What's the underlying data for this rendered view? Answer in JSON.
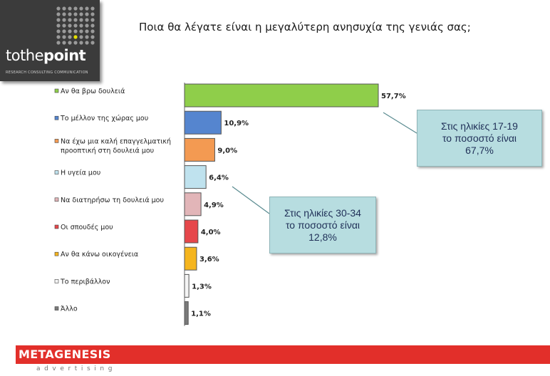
{
  "logo": {
    "word_part1": "tothe",
    "word_part2": "point",
    "tagline": "RESEARCH  CONSULTING  COMMUNICATION",
    "dot_color": "#9a9a9a",
    "accent_dot_color": "#e5e000"
  },
  "title": "Ποια θα λέγατε είναι η μεγαλύτερη ανησυχία της γενιάς σας;",
  "chart_data": {
    "type": "bar",
    "orientation": "horizontal",
    "title": "Ποια θα λέγατε είναι η μεγαλύτερη ανησυχία της γενιάς σας;",
    "unit": "%",
    "categories": [
      [
        "Αν θα βρω δουλειά"
      ],
      [
        "Το μέλλον της χώρας μου"
      ],
      [
        "Να έχω μια καλή επαγγελματική",
        "προοπτική στη δουλειά μου"
      ],
      [
        "Η υγεία μου"
      ],
      [
        "Να διατηρήσω τη δουλειά μου"
      ],
      [
        "Οι σπουδές μου"
      ],
      [
        "Αν θα κάνω οικογένεια"
      ],
      [
        "Το περιβάλλον"
      ],
      [
        "Άλλο"
      ]
    ],
    "values": [
      57.7,
      10.9,
      9.0,
      6.4,
      4.9,
      4.0,
      3.6,
      1.3,
      1.1
    ],
    "value_labels": [
      "57,7%",
      "10,9%",
      "9,0%",
      "6,4%",
      "4,9%",
      "4,0%",
      "3,6%",
      "1,3%",
      "1,1%"
    ],
    "colors": [
      "#8fce4a",
      "#5585cf",
      "#f39a52",
      "#bfe2ee",
      "#e2b5b8",
      "#e6474b",
      "#f5b51e",
      "#f4f4f4",
      "#7a7a7a"
    ],
    "legend": "none",
    "grid": false
  },
  "callouts": [
    {
      "line1": "Στις ηλικίες 17-19",
      "line2": "το ποσοστό είναι",
      "line3": "67,7%"
    },
    {
      "line1": "Στις ηλικίες 30-34",
      "line2": "το ποσοστό είναι",
      "line3": "12,8%"
    }
  ],
  "footer": {
    "brand": "METAGENESIS",
    "subtitle": "advertising",
    "bar_color": "#e22f2a"
  }
}
